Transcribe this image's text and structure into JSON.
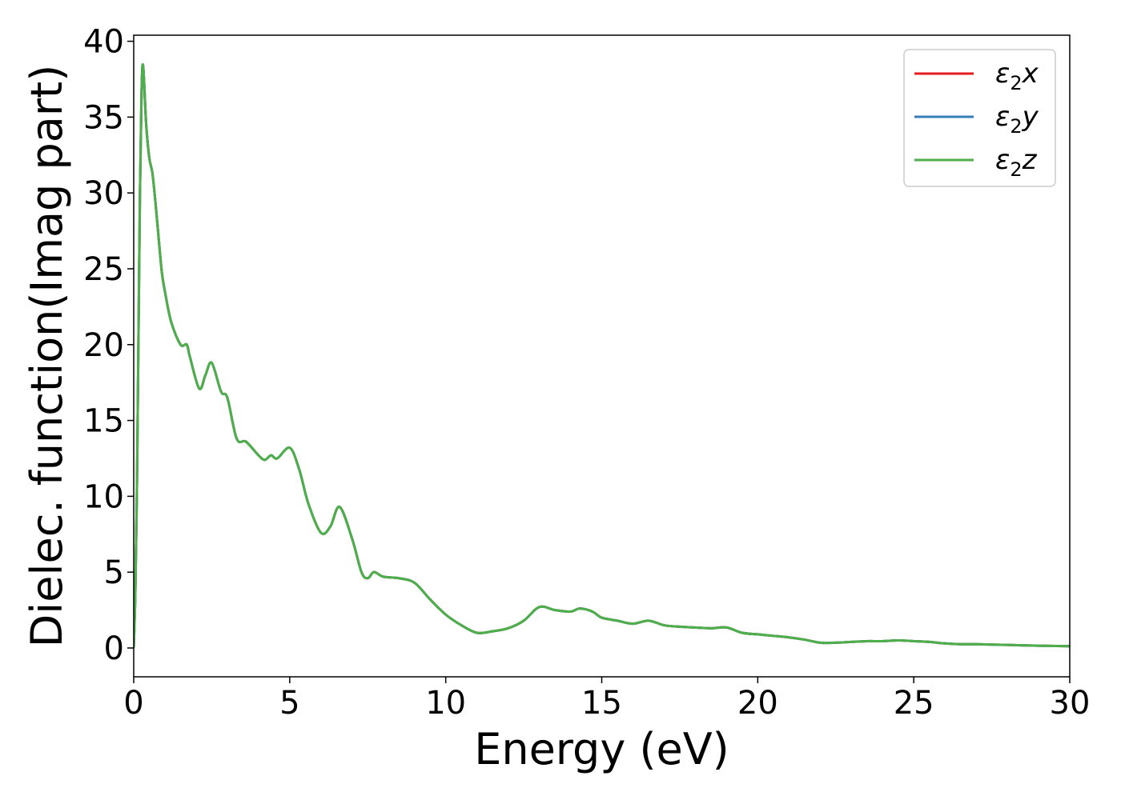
{
  "chart_data": {
    "type": "line",
    "title": "",
    "xlabel": "Energy (eV)",
    "ylabel": "Dielec. function(Imag part)",
    "xlim": [
      0,
      30
    ],
    "ylim": [
      -1.9,
      40.4
    ],
    "x_ticks": [
      0,
      5,
      10,
      15,
      20,
      25,
      30
    ],
    "y_ticks": [
      0,
      5,
      10,
      15,
      20,
      25,
      30,
      35,
      40
    ],
    "grid": false,
    "legend_position": "top-right",
    "series": [
      {
        "name": "ε₂x",
        "legend_base": "ε",
        "legend_sub": "2",
        "legend_suffix": "x",
        "color": "#e41a1c",
        "x": [
          0,
          0.05,
          0.1,
          0.15,
          0.2,
          0.25,
          0.3,
          0.4,
          0.5,
          0.6,
          0.7,
          0.8,
          0.9,
          1.0,
          1.2,
          1.5,
          1.7,
          1.8,
          2.1,
          2.3,
          2.5,
          2.8,
          3.0,
          3.3,
          3.6,
          4.0,
          4.2,
          4.4,
          4.6,
          5.0,
          5.3,
          5.6,
          6.0,
          6.3,
          6.6,
          7.0,
          7.3,
          7.5,
          7.7,
          8.0,
          8.5,
          9.0,
          9.5,
          10.0,
          10.5,
          11.0,
          11.5,
          12.0,
          12.5,
          13.0,
          13.5,
          14.0,
          14.3,
          14.7,
          15.0,
          15.5,
          16.0,
          16.5,
          17.0,
          17.5,
          18.0,
          18.5,
          19.0,
          19.5,
          20.0,
          20.5,
          21.0,
          21.5,
          22.0,
          22.5,
          23.0,
          23.5,
          24.0,
          24.5,
          25.0,
          25.5,
          26.0,
          26.5,
          27.0,
          28.0,
          29.0,
          30.0
        ],
        "values": [
          0,
          3.5,
          10,
          20,
          30,
          36.5,
          38.4,
          34.5,
          32.3,
          31.3,
          29.3,
          27.0,
          24.8,
          23.5,
          21.5,
          20.0,
          20.0,
          19.2,
          17.1,
          18.0,
          18.8,
          16.9,
          16.5,
          13.8,
          13.6,
          12.7,
          12.4,
          12.7,
          12.5,
          13.2,
          11.8,
          9.5,
          7.6,
          8.0,
          9.3,
          7.2,
          5.0,
          4.6,
          5.0,
          4.7,
          4.6,
          4.3,
          3.2,
          2.2,
          1.5,
          1.0,
          1.1,
          1.3,
          1.8,
          2.7,
          2.5,
          2.4,
          2.6,
          2.4,
          2.0,
          1.8,
          1.6,
          1.8,
          1.5,
          1.4,
          1.35,
          1.3,
          1.35,
          1.0,
          0.9,
          0.8,
          0.7,
          0.55,
          0.35,
          0.35,
          0.4,
          0.45,
          0.45,
          0.5,
          0.45,
          0.4,
          0.3,
          0.25,
          0.25,
          0.2,
          0.15,
          0.12
        ]
      },
      {
        "name": "ε₂y",
        "legend_base": "ε",
        "legend_sub": "2",
        "legend_suffix": "y",
        "color": "#377eb8",
        "x": [
          0,
          0.05,
          0.1,
          0.15,
          0.2,
          0.25,
          0.3,
          0.4,
          0.5,
          0.6,
          0.7,
          0.8,
          0.9,
          1.0,
          1.2,
          1.5,
          1.7,
          1.8,
          2.1,
          2.3,
          2.5,
          2.8,
          3.0,
          3.3,
          3.6,
          4.0,
          4.2,
          4.4,
          4.6,
          5.0,
          5.3,
          5.6,
          6.0,
          6.3,
          6.6,
          7.0,
          7.3,
          7.5,
          7.7,
          8.0,
          8.5,
          9.0,
          9.5,
          10.0,
          10.5,
          11.0,
          11.5,
          12.0,
          12.5,
          13.0,
          13.5,
          14.0,
          14.3,
          14.7,
          15.0,
          15.5,
          16.0,
          16.5,
          17.0,
          17.5,
          18.0,
          18.5,
          19.0,
          19.5,
          20.0,
          20.5,
          21.0,
          21.5,
          22.0,
          22.5,
          23.0,
          23.5,
          24.0,
          24.5,
          25.0,
          25.5,
          26.0,
          26.5,
          27.0,
          28.0,
          29.0,
          30.0
        ],
        "values": [
          0,
          3.5,
          10,
          20,
          30,
          36.5,
          38.4,
          34.5,
          32.3,
          31.3,
          29.3,
          27.0,
          24.8,
          23.5,
          21.5,
          20.0,
          20.0,
          19.2,
          17.1,
          18.0,
          18.8,
          16.9,
          16.5,
          13.8,
          13.6,
          12.7,
          12.4,
          12.7,
          12.5,
          13.2,
          11.8,
          9.5,
          7.6,
          8.0,
          9.3,
          7.2,
          5.0,
          4.6,
          5.0,
          4.7,
          4.6,
          4.3,
          3.2,
          2.2,
          1.5,
          1.0,
          1.1,
          1.3,
          1.8,
          2.7,
          2.5,
          2.4,
          2.6,
          2.4,
          2.0,
          1.8,
          1.6,
          1.8,
          1.5,
          1.4,
          1.35,
          1.3,
          1.35,
          1.0,
          0.9,
          0.8,
          0.7,
          0.55,
          0.35,
          0.35,
          0.4,
          0.45,
          0.45,
          0.5,
          0.45,
          0.4,
          0.3,
          0.25,
          0.25,
          0.2,
          0.15,
          0.12
        ]
      },
      {
        "name": "ε₂z",
        "legend_base": "ε",
        "legend_sub": "2",
        "legend_suffix": "z",
        "color": "#4daf4a",
        "x": [
          0,
          0.05,
          0.1,
          0.15,
          0.2,
          0.25,
          0.3,
          0.4,
          0.5,
          0.6,
          0.7,
          0.8,
          0.9,
          1.0,
          1.2,
          1.5,
          1.7,
          1.8,
          2.1,
          2.3,
          2.5,
          2.8,
          3.0,
          3.3,
          3.6,
          4.0,
          4.2,
          4.4,
          4.6,
          5.0,
          5.3,
          5.6,
          6.0,
          6.3,
          6.6,
          7.0,
          7.3,
          7.5,
          7.7,
          8.0,
          8.5,
          9.0,
          9.5,
          10.0,
          10.5,
          11.0,
          11.5,
          12.0,
          12.5,
          13.0,
          13.5,
          14.0,
          14.3,
          14.7,
          15.0,
          15.5,
          16.0,
          16.5,
          17.0,
          17.5,
          18.0,
          18.5,
          19.0,
          19.5,
          20.0,
          20.5,
          21.0,
          21.5,
          22.0,
          22.5,
          23.0,
          23.5,
          24.0,
          24.5,
          25.0,
          25.5,
          26.0,
          26.5,
          27.0,
          28.0,
          29.0,
          30.0
        ],
        "values": [
          0,
          3.5,
          10,
          20,
          30,
          36.5,
          38.4,
          34.5,
          32.3,
          31.3,
          29.3,
          27.0,
          24.8,
          23.5,
          21.5,
          20.0,
          20.0,
          19.2,
          17.1,
          18.0,
          18.8,
          16.9,
          16.5,
          13.8,
          13.6,
          12.7,
          12.4,
          12.7,
          12.5,
          13.2,
          11.8,
          9.5,
          7.6,
          8.0,
          9.3,
          7.2,
          5.0,
          4.6,
          5.0,
          4.7,
          4.6,
          4.3,
          3.2,
          2.2,
          1.5,
          1.0,
          1.1,
          1.3,
          1.8,
          2.7,
          2.5,
          2.4,
          2.6,
          2.4,
          2.0,
          1.8,
          1.6,
          1.8,
          1.5,
          1.4,
          1.35,
          1.3,
          1.35,
          1.0,
          0.9,
          0.8,
          0.7,
          0.55,
          0.35,
          0.35,
          0.4,
          0.45,
          0.45,
          0.5,
          0.45,
          0.4,
          0.3,
          0.25,
          0.25,
          0.2,
          0.15,
          0.12
        ]
      }
    ]
  }
}
